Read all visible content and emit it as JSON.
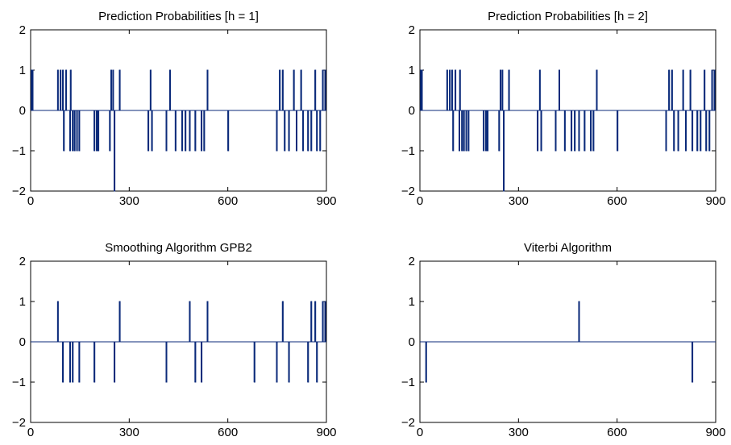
{
  "chart_data": [
    {
      "type": "line",
      "title": "Prediction Probabilities [h = 1]",
      "xlabel": "",
      "ylabel": "",
      "xlim": [
        0,
        900
      ],
      "ylim": [
        -2,
        2
      ],
      "xticks": [
        0,
        300,
        600,
        900
      ],
      "yticks": [
        -2,
        -1,
        0,
        1,
        2
      ],
      "xtick_labels": [
        "0",
        "300",
        "600",
        "900"
      ],
      "ytick_labels": [
        "−2",
        "−1",
        "0",
        "1",
        "2"
      ],
      "grid": false,
      "color": "#0b2a7a",
      "series": [
        {
          "impulses": [
            [
              2,
              1
            ],
            [
              5,
              1
            ],
            [
              82,
              1
            ],
            [
              90,
              1
            ],
            [
              97,
              1
            ],
            [
              100,
              -1
            ],
            [
              107,
              1
            ],
            [
              119,
              -1
            ],
            [
              121,
              1
            ],
            [
              127,
              -1
            ],
            [
              133,
              -1
            ],
            [
              140,
              -1
            ],
            [
              147,
              -1
            ],
            [
              193,
              -1
            ],
            [
              200,
              -1
            ],
            [
              205,
              -1
            ],
            [
              240,
              -1
            ],
            [
              244,
              1
            ],
            [
              250,
              1
            ],
            [
              254,
              -2
            ],
            [
              270,
              1
            ],
            [
              357,
              -1
            ],
            [
              364,
              1
            ],
            [
              368,
              -1
            ],
            [
              412,
              -1
            ],
            [
              423,
              1
            ],
            [
              440,
              -1
            ],
            [
              460,
              -1
            ],
            [
              470,
              -1
            ],
            [
              483,
              -1
            ],
            [
              500,
              -1
            ],
            [
              519,
              -1
            ],
            [
              527,
              -1
            ],
            [
              537,
              1
            ],
            [
              600,
              -1
            ],
            [
              748,
              -1
            ],
            [
              757,
              1
            ],
            [
              766,
              1
            ],
            [
              772,
              -1
            ],
            [
              785,
              -1
            ],
            [
              800,
              1
            ],
            [
              808,
              -1
            ],
            [
              822,
              1
            ],
            [
              828,
              -1
            ],
            [
              843,
              -1
            ],
            [
              853,
              -1
            ],
            [
              865,
              1
            ],
            [
              870,
              -1
            ],
            [
              880,
              -1
            ],
            [
              888,
              1
            ],
            [
              895,
              1
            ]
          ]
        }
      ]
    },
    {
      "type": "line",
      "title": "Prediction Probabilities [h = 2]",
      "xlabel": "",
      "ylabel": "",
      "xlim": [
        0,
        900
      ],
      "ylim": [
        -2,
        2
      ],
      "xticks": [
        0,
        300,
        600,
        900
      ],
      "yticks": [
        -2,
        -1,
        0,
        1,
        2
      ],
      "xtick_labels": [
        "0",
        "300",
        "600",
        "900"
      ],
      "ytick_labels": [
        "−2",
        "−1",
        "0",
        "1",
        "2"
      ],
      "grid": false,
      "color": "#0b2a7a",
      "series": [
        {
          "impulses": [
            [
              2,
              1
            ],
            [
              5,
              1
            ],
            [
              82,
              1
            ],
            [
              90,
              1
            ],
            [
              97,
              1
            ],
            [
              100,
              -1
            ],
            [
              107,
              1
            ],
            [
              119,
              -1
            ],
            [
              121,
              1
            ],
            [
              127,
              -1
            ],
            [
              133,
              -1
            ],
            [
              140,
              -1
            ],
            [
              147,
              -1
            ],
            [
              193,
              -1
            ],
            [
              200,
              -1
            ],
            [
              205,
              -1
            ],
            [
              240,
              -1
            ],
            [
              244,
              1
            ],
            [
              250,
              1
            ],
            [
              254,
              -2
            ],
            [
              270,
              1
            ],
            [
              357,
              -1
            ],
            [
              364,
              1
            ],
            [
              368,
              -1
            ],
            [
              412,
              -1
            ],
            [
              423,
              1
            ],
            [
              440,
              -1
            ],
            [
              460,
              -1
            ],
            [
              470,
              -1
            ],
            [
              483,
              -1
            ],
            [
              500,
              -1
            ],
            [
              519,
              -1
            ],
            [
              527,
              -1
            ],
            [
              537,
              1
            ],
            [
              600,
              -1
            ],
            [
              748,
              -1
            ],
            [
              757,
              1
            ],
            [
              766,
              1
            ],
            [
              772,
              -1
            ],
            [
              785,
              -1
            ],
            [
              800,
              1
            ],
            [
              808,
              -1
            ],
            [
              822,
              1
            ],
            [
              828,
              -1
            ],
            [
              843,
              -1
            ],
            [
              853,
              -1
            ],
            [
              865,
              1
            ],
            [
              870,
              -1
            ],
            [
              880,
              -1
            ],
            [
              888,
              1
            ],
            [
              895,
              1
            ]
          ]
        }
      ]
    },
    {
      "type": "line",
      "title": "Smoothing Algorithm GPB2",
      "xlabel": "",
      "ylabel": "",
      "xlim": [
        0,
        900
      ],
      "ylim": [
        -2,
        2
      ],
      "xticks": [
        0,
        300,
        600,
        900
      ],
      "yticks": [
        -2,
        -1,
        0,
        1,
        2
      ],
      "xtick_labels": [
        "0",
        "300",
        "600",
        "900"
      ],
      "ytick_labels": [
        "−2",
        "−1",
        "0",
        "1",
        "2"
      ],
      "grid": false,
      "color": "#0b2a7a",
      "series": [
        {
          "impulses": [
            [
              82,
              1
            ],
            [
              97,
              -1
            ],
            [
              119,
              -1
            ],
            [
              127,
              -1
            ],
            [
              147,
              -1
            ],
            [
              193,
              -1
            ],
            [
              254,
              -1
            ],
            [
              270,
              1
            ],
            [
              412,
              -1
            ],
            [
              483,
              1
            ],
            [
              500,
              -1
            ],
            [
              519,
              -1
            ],
            [
              537,
              1
            ],
            [
              680,
              -1
            ],
            [
              748,
              -1
            ],
            [
              766,
              1
            ],
            [
              785,
              -1
            ],
            [
              843,
              -1
            ],
            [
              853,
              1
            ],
            [
              865,
              1
            ],
            [
              870,
              -1
            ],
            [
              888,
              1
            ],
            [
              895,
              1
            ]
          ]
        }
      ]
    },
    {
      "type": "line",
      "title": "Viterbi Algorithm",
      "xlabel": "",
      "ylabel": "",
      "xlim": [
        0,
        900
      ],
      "ylim": [
        -2,
        2
      ],
      "xticks": [
        0,
        300,
        600,
        900
      ],
      "yticks": [
        -2,
        -1,
        0,
        1,
        2
      ],
      "xtick_labels": [
        "0",
        "300",
        "600",
        "900"
      ],
      "ytick_labels": [
        "−2",
        "−1",
        "0",
        "1",
        "2"
      ],
      "grid": false,
      "color": "#0b2a7a",
      "series": [
        {
          "impulses": [
            [
              18,
              -1
            ],
            [
              483,
              1
            ],
            [
              828,
              -1
            ]
          ]
        }
      ]
    }
  ]
}
